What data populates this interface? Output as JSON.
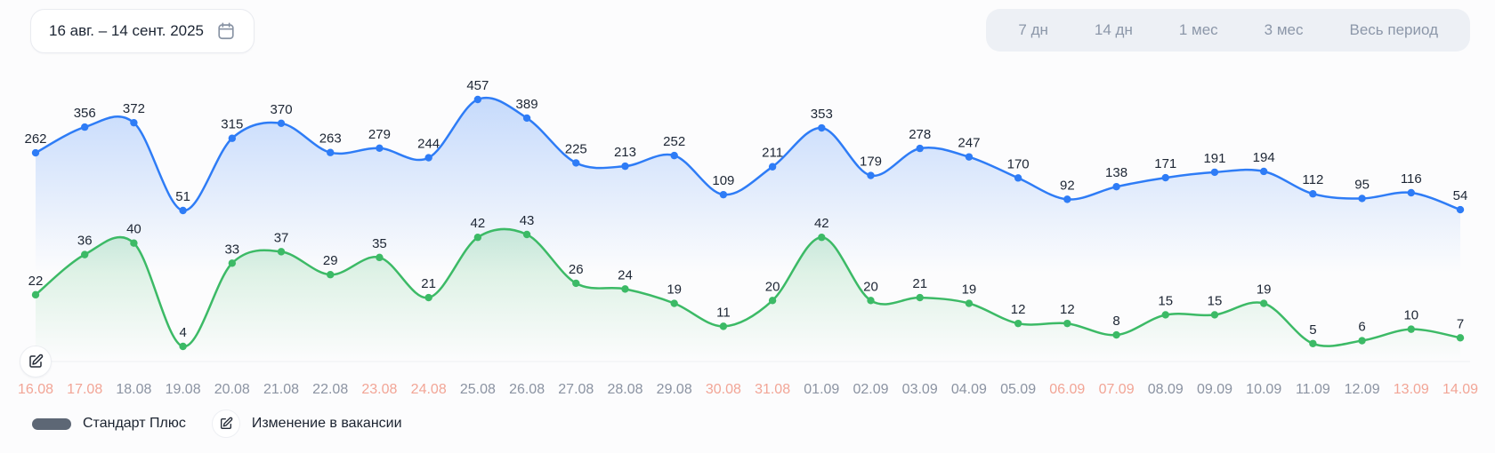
{
  "header": {
    "date_range": "16 авг. – 14 сент. 2025",
    "period_buttons": [
      "7 дн",
      "14 дн",
      "1 мес",
      "3 мес",
      "Весь период"
    ]
  },
  "chart_data": {
    "type": "line",
    "x": [
      "16.08",
      "17.08",
      "18.08",
      "19.08",
      "20.08",
      "21.08",
      "22.08",
      "23.08",
      "24.08",
      "25.08",
      "26.08",
      "27.08",
      "28.08",
      "29.08",
      "30.08",
      "31.08",
      "01.09",
      "02.09",
      "03.09",
      "04.09",
      "05.09",
      "06.09",
      "07.09",
      "08.09",
      "09.09",
      "10.09",
      "11.09",
      "12.09",
      "13.09",
      "14.09"
    ],
    "weekend_indices": [
      0,
      1,
      7,
      8,
      14,
      15,
      21,
      22,
      28,
      29
    ],
    "series": [
      {
        "name": "series-blue",
        "color": "#2e7cf6",
        "values": [
          262,
          356,
          372,
          51,
          315,
          370,
          263,
          279,
          244,
          457,
          389,
          225,
          213,
          252,
          109,
          211,
          353,
          179,
          278,
          247,
          170,
          92,
          138,
          171,
          191,
          194,
          112,
          95,
          116,
          54
        ]
      },
      {
        "name": "series-green",
        "color": "#3cba66",
        "values": [
          22,
          36,
          40,
          4,
          33,
          37,
          29,
          35,
          21,
          42,
          43,
          26,
          24,
          19,
          11,
          20,
          42,
          20,
          21,
          19,
          12,
          12,
          8,
          15,
          15,
          19,
          5,
          6,
          10,
          7
        ]
      }
    ],
    "point_labels_shown": true,
    "grid": false,
    "event_markers": [
      {
        "date": "16.08",
        "icon": "edit-icon"
      }
    ]
  },
  "legend": {
    "items": [
      {
        "label": "Стандарт Плюс",
        "swatch": "gray-pill",
        "color": "#5d6775"
      },
      {
        "label": "Изменение в вакансии",
        "swatch": "edit-icon"
      }
    ]
  },
  "colors": {
    "blue_line": "#2e7cf6",
    "green_line": "#3cba66",
    "weekend_label": "#f2a596",
    "weekday_label": "#8b93a2",
    "point_label": "#1d2634",
    "legend_swatch": "#5d6775"
  }
}
